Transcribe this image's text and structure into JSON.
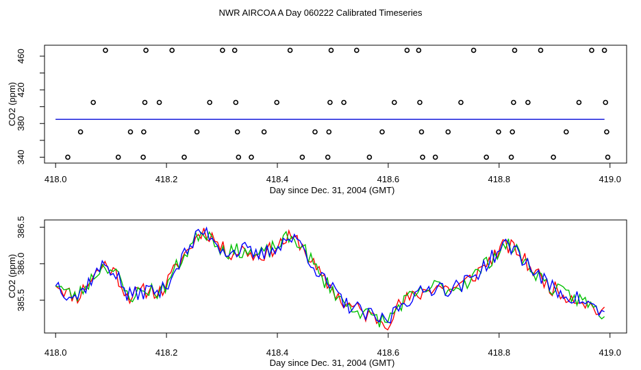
{
  "figure": {
    "title": "NWR AIRCOA A  Day 060222  Calibrated Timeseries"
  },
  "chart_data": [
    {
      "type": "scatter",
      "xlabel": "Day since Dec. 31, 2004 (GMT)",
      "ylabel": "CO2 (ppm)",
      "xlim": [
        417.98,
        419.03
      ],
      "ylim": [
        333,
        473
      ],
      "xticks": [
        "418.0",
        "418.2",
        "418.4",
        "418.6",
        "418.8",
        "419.0"
      ],
      "yticks": [
        "340",
        "380",
        "420",
        "460"
      ],
      "ytick_values": [
        340,
        380,
        420,
        460
      ],
      "points": [
        [
          418.022,
          340
        ],
        [
          418.045,
          370
        ],
        [
          418.068,
          405
        ],
        [
          418.09,
          467
        ],
        [
          418.113,
          340
        ],
        [
          418.135,
          370
        ],
        [
          418.158,
          340
        ],
        [
          418.159,
          370
        ],
        [
          418.161,
          405
        ],
        [
          418.163,
          467
        ],
        [
          418.187,
          405
        ],
        [
          418.21,
          467
        ],
        [
          418.232,
          340
        ],
        [
          418.255,
          370
        ],
        [
          418.278,
          405
        ],
        [
          418.301,
          467
        ],
        [
          418.323,
          467
        ],
        [
          418.325,
          405
        ],
        [
          418.328,
          370
        ],
        [
          418.33,
          340
        ],
        [
          418.353,
          340
        ],
        [
          418.376,
          370
        ],
        [
          418.399,
          405
        ],
        [
          418.423,
          467
        ],
        [
          418.445,
          340
        ],
        [
          418.468,
          370
        ],
        [
          418.491,
          340
        ],
        [
          418.493,
          370
        ],
        [
          418.495,
          405
        ],
        [
          418.497,
          467
        ],
        [
          418.52,
          405
        ],
        [
          418.543,
          467
        ],
        [
          418.566,
          340
        ],
        [
          418.589,
          370
        ],
        [
          418.611,
          405
        ],
        [
          418.634,
          467
        ],
        [
          418.655,
          467
        ],
        [
          418.657,
          405
        ],
        [
          418.66,
          370
        ],
        [
          418.662,
          340
        ],
        [
          418.685,
          340
        ],
        [
          418.708,
          370
        ],
        [
          418.731,
          405
        ],
        [
          418.754,
          467
        ],
        [
          418.777,
          340
        ],
        [
          418.799,
          370
        ],
        [
          418.822,
          340
        ],
        [
          418.824,
          370
        ],
        [
          418.826,
          405
        ],
        [
          418.828,
          467
        ],
        [
          418.852,
          405
        ],
        [
          418.875,
          467
        ],
        [
          418.898,
          340
        ],
        [
          418.921,
          370
        ],
        [
          418.944,
          405
        ],
        [
          418.967,
          467
        ],
        [
          418.99,
          467
        ],
        [
          418.992,
          405
        ],
        [
          418.994,
          370
        ],
        [
          418.996,
          340
        ]
      ],
      "flat_series": [
        {
          "color": "#ff0000",
          "values": [
            [
              418.0,
              385.0
            ],
            [
              418.99,
              385.0
            ]
          ]
        },
        {
          "color": "#00c000",
          "values": [
            [
              418.0,
              385.0
            ],
            [
              418.99,
              385.0
            ]
          ]
        },
        {
          "color": "#0000ff",
          "values": [
            [
              418.0,
              385.0
            ],
            [
              418.99,
              385.0
            ]
          ]
        }
      ],
      "colors": {
        "points": "#000000"
      }
    },
    {
      "type": "line",
      "xlabel": "Day since Dec. 31, 2004 (GMT)",
      "ylabel": "CO2 (ppm)",
      "xlim": [
        417.98,
        419.03
      ],
      "ylim": [
        385.05,
        386.6
      ],
      "xticks": [
        "418.0",
        "418.2",
        "418.4",
        "418.6",
        "418.8",
        "419.0"
      ],
      "yticks": [
        "385.5",
        "386.0",
        "386.5"
      ],
      "ytick_values": [
        385.5,
        386.0,
        386.5
      ],
      "anchors": [
        [
          418.0,
          385.75
        ],
        [
          418.02,
          385.6
        ],
        [
          418.04,
          385.55
        ],
        [
          418.07,
          385.85
        ],
        [
          418.09,
          386.0
        ],
        [
          418.11,
          385.85
        ],
        [
          418.13,
          385.55
        ],
        [
          418.15,
          385.6
        ],
        [
          418.17,
          385.65
        ],
        [
          418.19,
          385.6
        ],
        [
          418.21,
          385.85
        ],
        [
          418.23,
          386.1
        ],
        [
          418.25,
          386.3
        ],
        [
          418.26,
          386.45
        ],
        [
          418.28,
          386.4
        ],
        [
          418.3,
          386.2
        ],
        [
          418.32,
          386.15
        ],
        [
          418.34,
          386.2
        ],
        [
          418.36,
          386.1
        ],
        [
          418.38,
          386.15
        ],
        [
          418.4,
          386.25
        ],
        [
          418.42,
          386.35
        ],
        [
          418.44,
          386.3
        ],
        [
          418.46,
          386.05
        ],
        [
          418.48,
          385.8
        ],
        [
          418.5,
          385.65
        ],
        [
          418.52,
          385.45
        ],
        [
          418.54,
          385.4
        ],
        [
          418.56,
          385.3
        ],
        [
          418.58,
          385.25
        ],
        [
          418.6,
          385.2
        ],
        [
          418.61,
          385.35
        ],
        [
          418.63,
          385.5
        ],
        [
          418.65,
          385.55
        ],
        [
          418.67,
          385.65
        ],
        [
          418.69,
          385.7
        ],
        [
          418.71,
          385.65
        ],
        [
          418.73,
          385.7
        ],
        [
          418.75,
          385.8
        ],
        [
          418.77,
          385.95
        ],
        [
          418.79,
          386.1
        ],
        [
          418.81,
          386.25
        ],
        [
          418.83,
          386.2
        ],
        [
          418.85,
          386.0
        ],
        [
          418.87,
          385.85
        ],
        [
          418.89,
          385.7
        ],
        [
          418.91,
          385.6
        ],
        [
          418.93,
          385.55
        ],
        [
          418.95,
          385.5
        ],
        [
          418.97,
          385.4
        ],
        [
          418.99,
          385.3
        ]
      ],
      "series": [
        {
          "color": "#ff0000",
          "seed": 11
        },
        {
          "color": "#00c000",
          "seed": 23
        },
        {
          "color": "#0000ff",
          "seed": 37
        }
      ]
    }
  ]
}
